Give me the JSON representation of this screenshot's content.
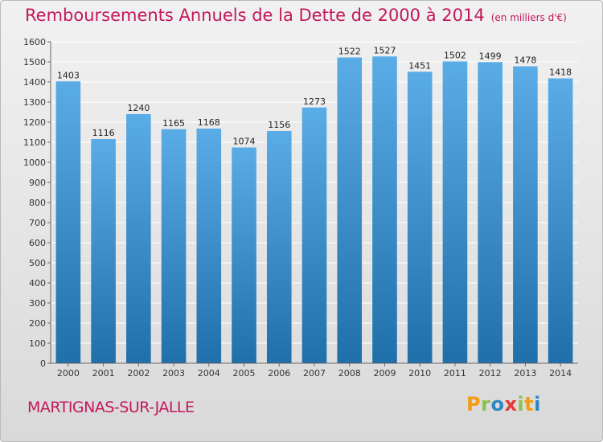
{
  "header": {
    "title": "Remboursements Annuels de la Dette de 2000 à 2014",
    "unit": "(en milliers d'€)"
  },
  "footer": {
    "place": "MARTIGNAS-SUR-JALLE",
    "brand": [
      "P",
      "r",
      "o",
      "x",
      "i",
      "t",
      "i"
    ],
    "brand_colors": [
      "#f39c12",
      "#8bc34a",
      "#2e86c1",
      "#e53935",
      "#8bc34a",
      "#f39c12",
      "#2e86c1"
    ]
  },
  "colors": {
    "bar_top": "#5aace6",
    "bar_bottom": "#1f6fab",
    "grid": "#ffffff",
    "accent": "#c2185b"
  },
  "chart_data": {
    "type": "bar",
    "title": "Remboursements Annuels de la Dette de 2000 à 2014",
    "subtitle": "(en milliers d'€)",
    "xlabel": "",
    "ylabel": "",
    "ylim": [
      0,
      1600
    ],
    "yticks": [
      0,
      100,
      200,
      300,
      400,
      500,
      600,
      700,
      800,
      900,
      1000,
      1100,
      1200,
      1300,
      1400,
      1500,
      1600
    ],
    "grid": true,
    "legend": "none",
    "categories": [
      "2000",
      "2001",
      "2002",
      "2003",
      "2004",
      "2005",
      "2006",
      "2007",
      "2008",
      "2009",
      "2010",
      "2011",
      "2012",
      "2013",
      "2014"
    ],
    "values": [
      1403,
      1116,
      1240,
      1165,
      1168,
      1074,
      1156,
      1273,
      1522,
      1527,
      1451,
      1502,
      1499,
      1478,
      1418
    ]
  }
}
